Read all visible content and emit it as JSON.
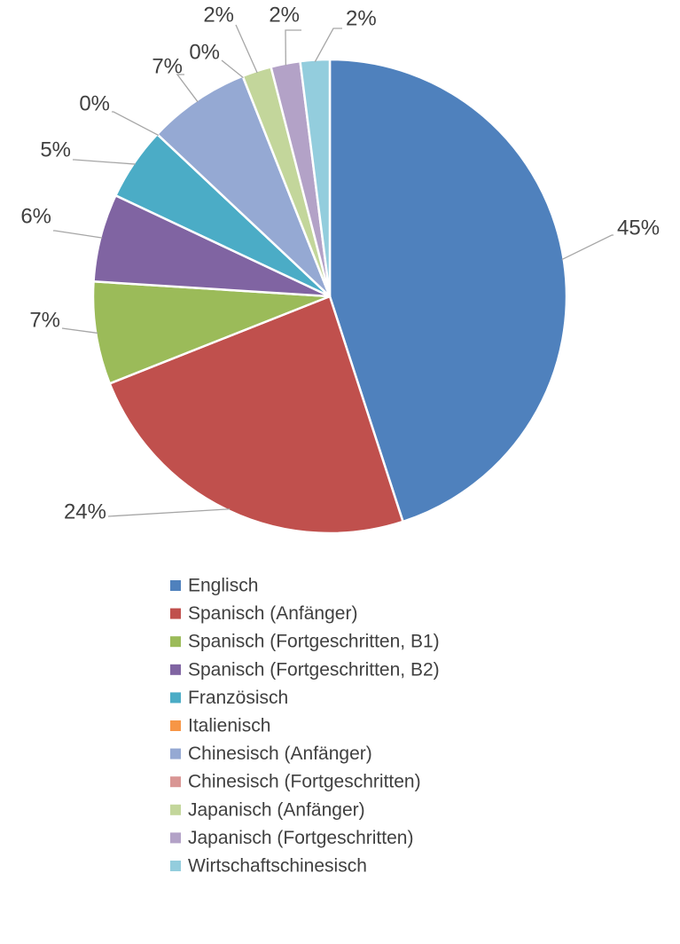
{
  "chart_data": {
    "type": "pie",
    "categories": [
      "Englisch",
      "Spanisch (Anfänger)",
      "Spanisch (Fortgeschritten, B1)",
      "Spanisch (Fortgeschritten, B2)",
      "Französisch",
      "Italienisch",
      "Chinesisch (Anfänger)",
      "Chinesisch (Fortgeschritten)",
      "Japanisch (Anfänger)",
      "Japanisch (Fortgeschritten)",
      "Wirtschaftschinesisch"
    ],
    "values": [
      45,
      24,
      7,
      6,
      5,
      0,
      7,
      0,
      2,
      2,
      2
    ],
    "value_labels": [
      "45%",
      "24%",
      "7%",
      "6%",
      "5%",
      "0%",
      "7%",
      "0%",
      "2%",
      "2%",
      "2%"
    ],
    "colors": [
      "#4f81bd",
      "#c0504d",
      "#9bbb59",
      "#8064a2",
      "#4bacc6",
      "#f79646",
      "#95a9d3",
      "#d99694",
      "#c3d69b",
      "#b3a2c7",
      "#93cddd"
    ],
    "legend": "bottom"
  }
}
